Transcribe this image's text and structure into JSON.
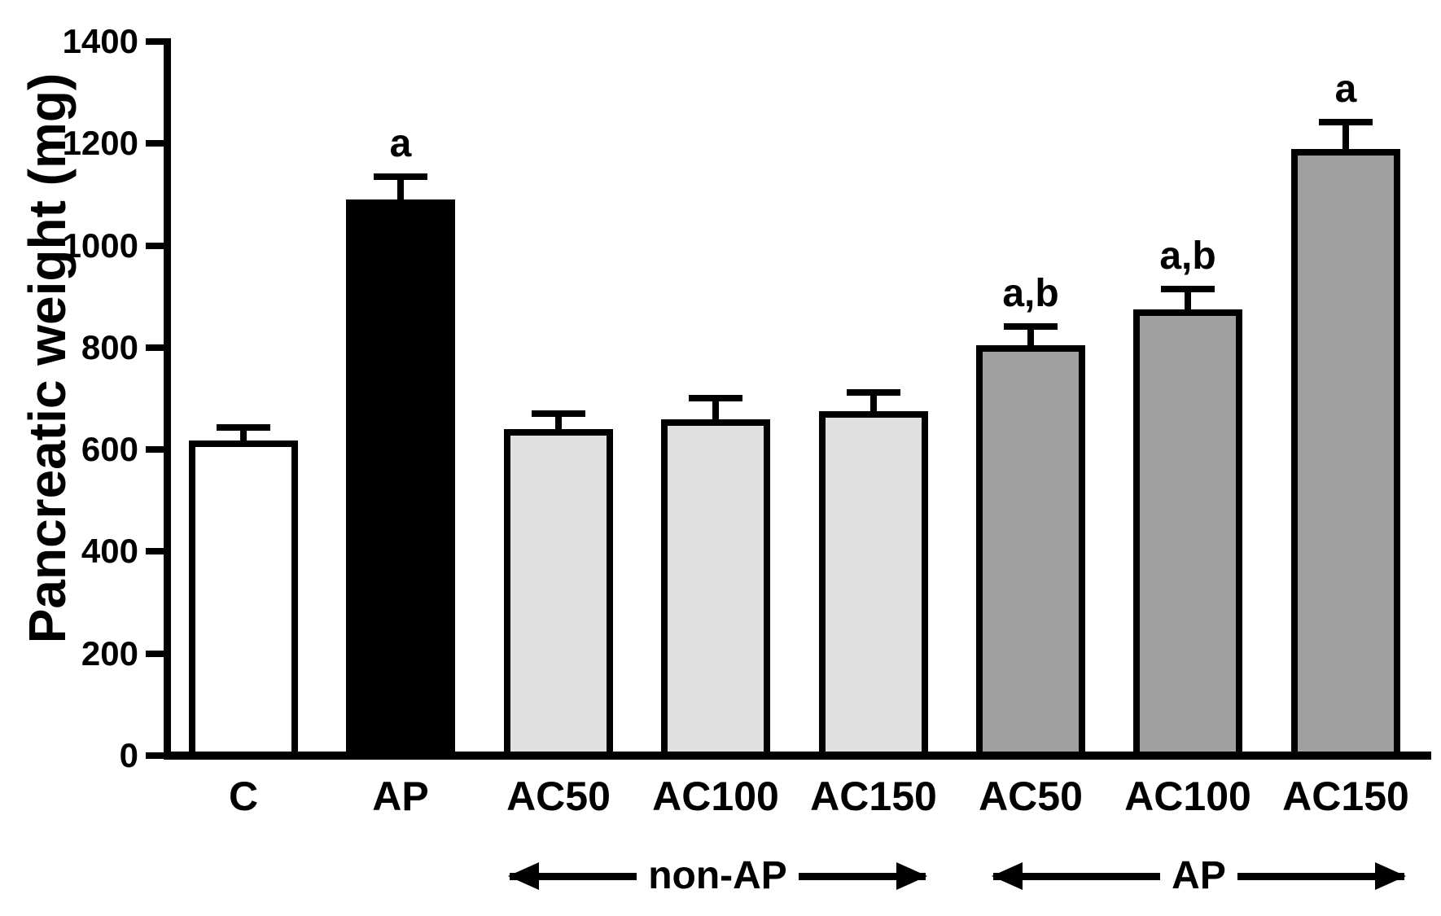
{
  "chart_data": {
    "type": "bar",
    "categories": [
      "C",
      "AP",
      "AC50",
      "AC100",
      "AC150",
      "AC50",
      "AC100",
      "AC150"
    ],
    "values": [
      618,
      1090,
      640,
      660,
      675,
      805,
      875,
      1190
    ],
    "sem_upper": [
      25,
      45,
      30,
      40,
      37,
      37,
      40,
      52
    ],
    "annotations": [
      "",
      "a",
      "",
      "",
      "",
      "a,b",
      "a,b",
      "a"
    ],
    "bar_colors": [
      "#ffffff",
      "#000000",
      "#e0e0e0",
      "#e0e0e0",
      "#e0e0e0",
      "#a0a0a0",
      "#a0a0a0",
      "#a0a0a0"
    ],
    "title": "",
    "xlabel": "",
    "ylabel": "Pancreatic weight (mg)",
    "ylim": [
      0,
      1400
    ],
    "y_ticks": [
      0,
      200,
      400,
      600,
      800,
      1000,
      1200,
      1400
    ],
    "grid": false,
    "legend": false,
    "error_bars": "upper SEM with caps",
    "group_spans": [
      {
        "label": "non-AP",
        "bars": [
          "AC50",
          "AC100",
          "AC150"
        ],
        "from_index": 2,
        "to_index": 4
      },
      {
        "label": "AP",
        "bars": [
          "AC50",
          "AC100",
          "AC150"
        ],
        "from_index": 5,
        "to_index": 7
      }
    ]
  }
}
